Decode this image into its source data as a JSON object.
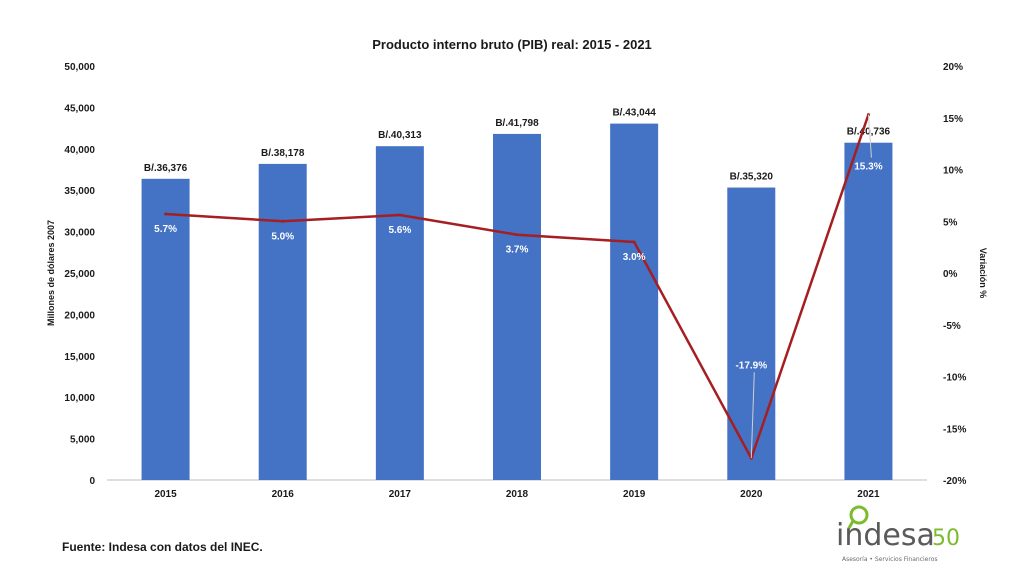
{
  "chart_data": {
    "type": "bar",
    "title": "Producto interno bruto (PIB) real: 2015 - 2021",
    "categories": [
      "2015",
      "2016",
      "2017",
      "2018",
      "2019",
      "2020",
      "2021"
    ],
    "series": [
      {
        "values": [
          36376,
          38178,
          40313,
          41798,
          43044,
          35320,
          40736
        ],
        "labels": [
          "B/.36,376",
          "B/.38,178",
          "B/.40,313",
          "B/.41,798",
          "B/.43,044",
          "B/.35,320",
          "B/.40,736"
        ],
        "color": "#4472c4",
        "axis": "left"
      },
      {
        "type": "line",
        "values": [
          5.7,
          5.0,
          5.6,
          3.7,
          3.0,
          -17.9,
          15.3
        ],
        "labels": [
          "5.7%",
          "5.0%",
          "5.6%",
          "3.7%",
          "3.0%",
          "-17.9%",
          "15.3%"
        ],
        "color": "#a51e22",
        "axis": "right"
      }
    ],
    "ylabel": "Millones de dólares 2007",
    "y2label": "Variación %",
    "ylim": [
      0,
      50000
    ],
    "y2lim": [
      -20,
      20
    ],
    "yticks": [
      "0",
      "5,000",
      "10,000",
      "15,000",
      "20,000",
      "25,000",
      "30,000",
      "35,000",
      "40,000",
      "45,000",
      "50,000"
    ],
    "y2ticks": [
      "-20%",
      "-15%",
      "-10%",
      "-5%",
      "0%",
      "5%",
      "10%",
      "15%",
      "20%"
    ],
    "grid": false,
    "legend": "none"
  },
  "source": "Fuente: Indesa con datos del INEC.",
  "logo": {
    "word": "indesa",
    "number": "50",
    "tagline": "Asesoría • Servicios Financieros",
    "colors": {
      "green": "#7dbb2e",
      "gray": "#5a5a5a"
    }
  }
}
